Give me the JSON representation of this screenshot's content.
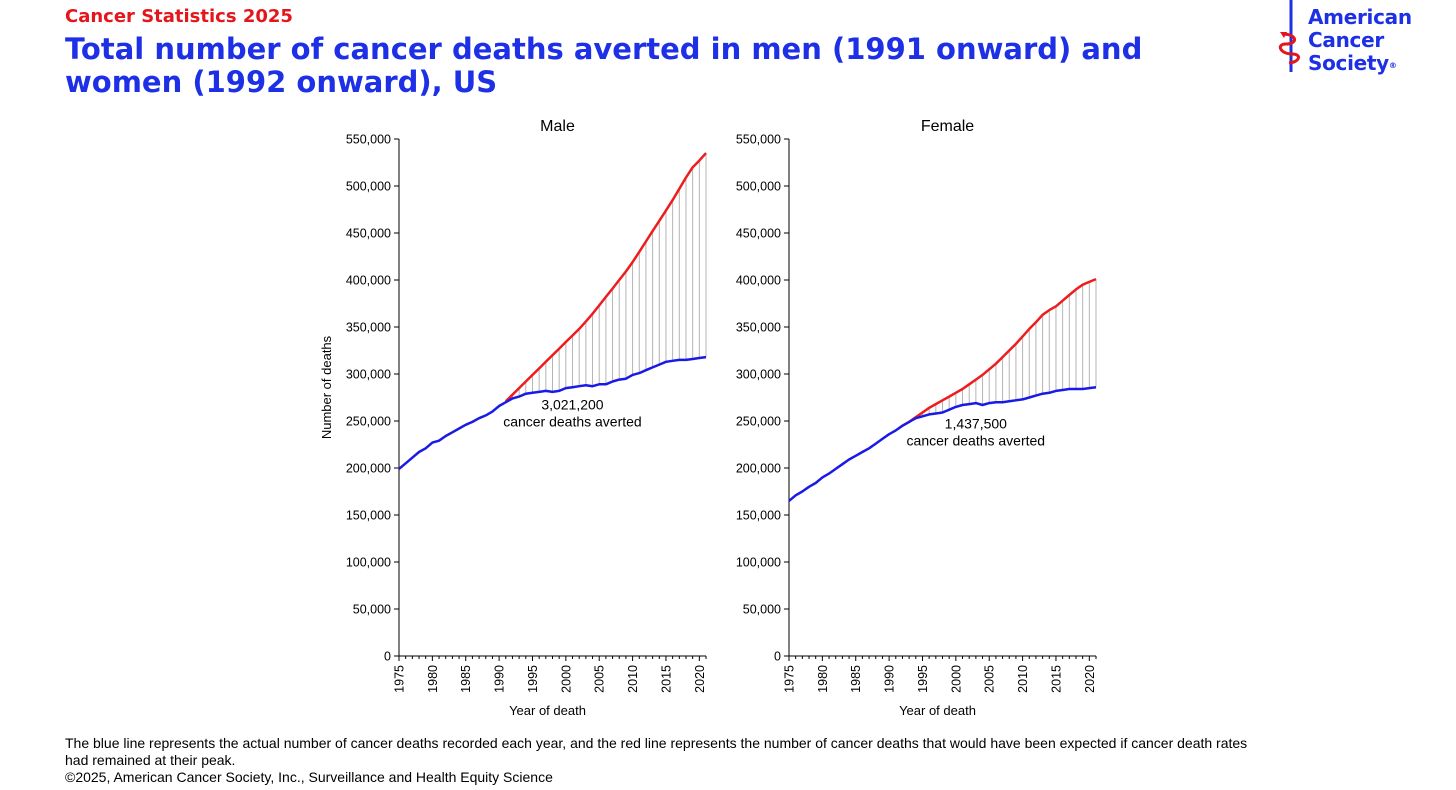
{
  "header": {
    "kicker": "Cancer Statistics 2025",
    "title": "Total number of cancer deaths averted in men (1991 onward) and women (1992 onward), US"
  },
  "logo": {
    "line1": "American",
    "line2": "Cancer",
    "line3": "Society",
    "registered": "®",
    "icon": "sword-caduceus-icon"
  },
  "colors": {
    "kicker": "#e5161b",
    "title": "#1d30e6",
    "logo_blue": "#1d30e6",
    "logo_red": "#e5161b",
    "actual_line": "#1a1ae6",
    "expected_line": "#ee1c1c",
    "averted_hatch": "#b4b4b4"
  },
  "footnote": {
    "line1": "The blue line represents the actual number of cancer deaths recorded each year, and the red line represents the number of cancer deaths that would have been expected if cancer death rates had remained at their peak.",
    "line2": "©2025, American Cancer Society, Inc., Surveillance and Health Equity Science"
  },
  "chart_data": [
    {
      "type": "line",
      "title": "Male",
      "xlabel": "Year of death",
      "ylabel": "Number of deaths",
      "xlim": [
        1975,
        2021
      ],
      "ylim": [
        0,
        550000
      ],
      "x_ticks": [
        "1975",
        "1980",
        "1985",
        "1990",
        "1995",
        "2000",
        "2005",
        "2010",
        "2015",
        "2020"
      ],
      "y_ticks": [
        "0",
        "50,000",
        "100,000",
        "150,000",
        "200,000",
        "250,000",
        "300,000",
        "350,000",
        "400,000",
        "450,000",
        "500,000",
        "550,000"
      ],
      "annotation": [
        "3,021,200",
        "cancer deaths averted"
      ],
      "annotation_at": [
        1993.5,
        262000
      ],
      "series": [
        {
          "name": "Actual deaths",
          "x": [
            1975,
            1976,
            1977,
            1978,
            1979,
            1980,
            1981,
            1982,
            1983,
            1984,
            1985,
            1986,
            1987,
            1988,
            1989,
            1990,
            1991,
            1992,
            1993,
            1994,
            1995,
            1996,
            1997,
            1998,
            1999,
            2000,
            2001,
            2002,
            2003,
            2004,
            2005,
            2006,
            2007,
            2008,
            2009,
            2010,
            2011,
            2012,
            2013,
            2014,
            2015,
            2016,
            2017,
            2018,
            2019,
            2020,
            2021
          ],
          "values": [
            199000,
            205000,
            211000,
            217000,
            221000,
            227000,
            229000,
            234000,
            238000,
            242000,
            246000,
            249000,
            253000,
            256000,
            260000,
            266000,
            270000,
            274000,
            276000,
            279000,
            280000,
            281000,
            282000,
            281000,
            282000,
            285000,
            286000,
            287000,
            288000,
            287000,
            289000,
            289000,
            292000,
            294000,
            295000,
            299000,
            301000,
            304000,
            307000,
            310000,
            313000,
            314000,
            315000,
            315000,
            316000,
            317000,
            318000
          ]
        },
        {
          "name": "Expected deaths at peak rates",
          "x": [
            1991,
            1992,
            1993,
            1994,
            1995,
            1996,
            1997,
            1998,
            1999,
            2000,
            2001,
            2002,
            2003,
            2004,
            2005,
            2006,
            2007,
            2008,
            2009,
            2010,
            2011,
            2012,
            2013,
            2014,
            2015,
            2016,
            2017,
            2018,
            2019,
            2020,
            2021
          ],
          "values": [
            271000,
            278000,
            285000,
            292000,
            299000,
            306000,
            313000,
            320000,
            327000,
            334000,
            341000,
            348000,
            356000,
            364000,
            373000,
            382000,
            391000,
            400000,
            409000,
            419000,
            430000,
            441000,
            452000,
            463000,
            474000,
            485000,
            497000,
            509000,
            520000,
            527000,
            535000
          ]
        }
      ]
    },
    {
      "type": "line",
      "title": "Female",
      "xlabel": "Year of death",
      "ylabel": "",
      "xlim": [
        1975,
        2021
      ],
      "ylim": [
        0,
        550000
      ],
      "x_ticks": [
        "1975",
        "1980",
        "1985",
        "1990",
        "1995",
        "2000",
        "2005",
        "2010",
        "2015",
        "2020"
      ],
      "y_ticks": [
        "0",
        "50,000",
        "100,000",
        "150,000",
        "200,000",
        "250,000",
        "300,000",
        "350,000",
        "400,000",
        "450,000",
        "500,000",
        "550,000"
      ],
      "annotation": [
        "1,437,500",
        "cancer deaths averted"
      ],
      "annotation_at": [
        1995.5,
        242000
      ],
      "series": [
        {
          "name": "Actual deaths",
          "x": [
            1975,
            1976,
            1977,
            1978,
            1979,
            1980,
            1981,
            1982,
            1983,
            1984,
            1985,
            1986,
            1987,
            1988,
            1989,
            1990,
            1991,
            1992,
            1993,
            1994,
            1995,
            1996,
            1997,
            1998,
            1999,
            2000,
            2001,
            2002,
            2003,
            2004,
            2005,
            2006,
            2007,
            2008,
            2009,
            2010,
            2011,
            2012,
            2013,
            2014,
            2015,
            2016,
            2017,
            2018,
            2019,
            2020,
            2021
          ],
          "values": [
            165000,
            171000,
            175000,
            180000,
            184000,
            190000,
            194000,
            199000,
            204000,
            209000,
            213000,
            217000,
            221000,
            226000,
            231000,
            236000,
            240000,
            245000,
            249000,
            253000,
            255000,
            257000,
            258000,
            259000,
            262000,
            265000,
            267000,
            268000,
            269000,
            267000,
            269000,
            270000,
            270000,
            271000,
            272000,
            273000,
            275000,
            277000,
            279000,
            280000,
            282000,
            283000,
            284000,
            284000,
            284000,
            285000,
            286000
          ]
        },
        {
          "name": "Expected deaths at peak rates",
          "x": [
            1992,
            1993,
            1994,
            1995,
            1996,
            1997,
            1998,
            1999,
            2000,
            2001,
            2002,
            2003,
            2004,
            2005,
            2006,
            2007,
            2008,
            2009,
            2010,
            2011,
            2012,
            2013,
            2014,
            2015,
            2016,
            2017,
            2018,
            2019,
            2020,
            2021
          ],
          "values": [
            245000,
            249000,
            254000,
            259000,
            264000,
            268000,
            272000,
            276000,
            280000,
            284000,
            289000,
            294000,
            299000,
            305000,
            311000,
            318000,
            325000,
            332000,
            340000,
            348000,
            355000,
            363000,
            368000,
            372000,
            378000,
            384000,
            390000,
            395000,
            398000,
            401000
          ]
        }
      ]
    }
  ]
}
